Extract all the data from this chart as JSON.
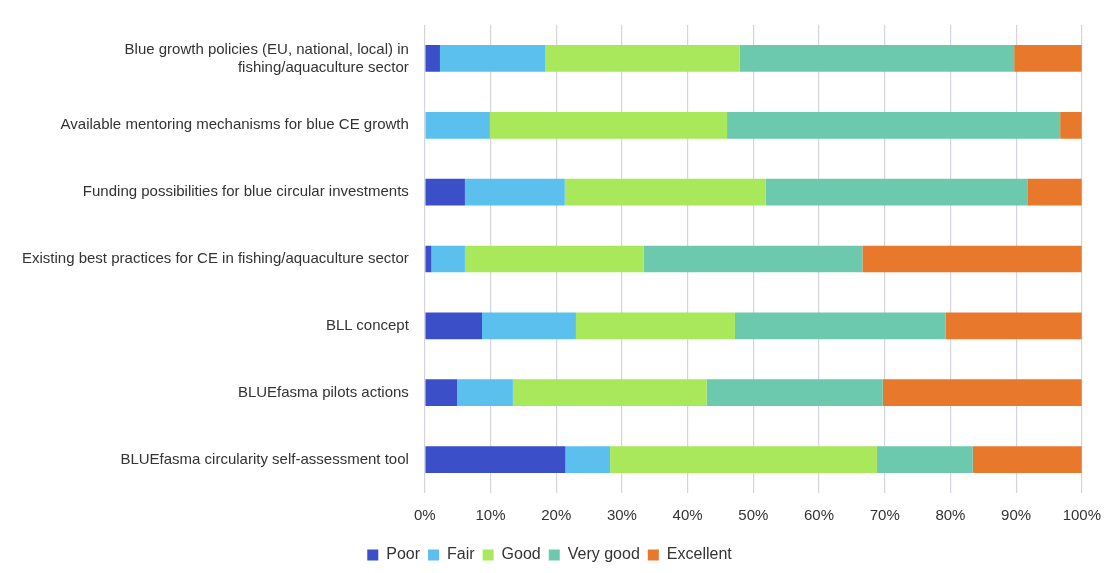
{
  "chart_data": {
    "type": "bar",
    "orientation": "horizontal",
    "stacked": true,
    "categories": [
      "Blue growth policies (EU, national, local) in fishing/aquaculture sector",
      "Available mentoring mechanisms for blue CE growth",
      "Funding possibilities for blue circular investments",
      "Existing best practices for CE in fishing/aquaculture sector",
      "BLL concept",
      "BLUEfasma pilots actions",
      "BLUEfasma circularity self-assessment tool"
    ],
    "series": [
      {
        "name": "Poor",
        "color": "#3b4fc8",
        "values": [
          2.3,
          0,
          6.1,
          1.0,
          8.7,
          4.9,
          21.4
        ]
      },
      {
        "name": "Fair",
        "color": "#5bc0ee",
        "values": [
          16.0,
          9.9,
          15.2,
          5.1,
          14.3,
          8.5,
          6.8
        ]
      },
      {
        "name": "Good",
        "color": "#a8e85a",
        "values": [
          29.6,
          36.1,
          30.6,
          27.2,
          24.2,
          29.5,
          40.6
        ]
      },
      {
        "name": "Very good",
        "color": "#6cc9ad",
        "values": [
          41.8,
          50.7,
          39.9,
          33.3,
          32.1,
          26.8,
          14.6
        ]
      },
      {
        "name": "Excellent",
        "color": "#e8782c",
        "values": [
          10.3,
          3.3,
          8.2,
          33.4,
          20.7,
          30.3,
          16.6
        ]
      }
    ],
    "xlim": [
      0,
      100
    ],
    "xticks": [
      {
        "value": 0,
        "label": "0%"
      },
      {
        "value": 10,
        "label": "10%"
      },
      {
        "value": 20,
        "label": "20%"
      },
      {
        "value": 30,
        "label": "30%"
      },
      {
        "value": 40,
        "label": "40%"
      },
      {
        "value": 50,
        "label": "50%"
      },
      {
        "value": 60,
        "label": "60%"
      },
      {
        "value": 70,
        "label": "70%"
      },
      {
        "value": 80,
        "label": "80%"
      },
      {
        "value": 90,
        "label": "90%"
      },
      {
        "value": 100,
        "label": "100%"
      }
    ],
    "grid": "x",
    "legend": "bottom"
  }
}
